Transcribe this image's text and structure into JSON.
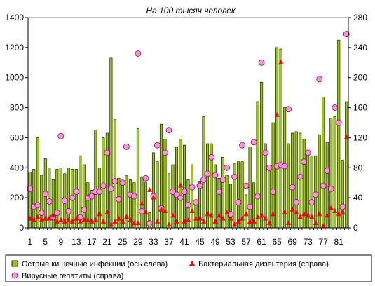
{
  "chart_data": {
    "type": "bar",
    "title": "На 100 тысяч человек",
    "xlabel": "",
    "ylabel": "",
    "ylim": [
      0,
      1400
    ],
    "y2lim": [
      0,
      280
    ],
    "y_ticks": [
      "0",
      "200",
      "400",
      "600",
      "800",
      "1000",
      "1200",
      "1400"
    ],
    "y2_ticks": [
      "0",
      "40",
      "80",
      "120",
      "160",
      "200",
      "240",
      "280"
    ],
    "x_tick_labels": [
      "1",
      "5",
      "9",
      "13",
      "17",
      "21",
      "25",
      "29",
      "33",
      "37",
      "41",
      "45",
      "49",
      "53",
      "57",
      "61",
      "65",
      "69",
      "73",
      "77",
      "81"
    ],
    "x_tick_positions": [
      1,
      5,
      9,
      13,
      17,
      21,
      25,
      29,
      33,
      37,
      41,
      45,
      49,
      53,
      57,
      61,
      65,
      69,
      73,
      77,
      81
    ],
    "legend_position": "bottom",
    "colors": {
      "bar_fill": "#99cc00",
      "bar_stroke": "#000000",
      "triangle": "#ff0000",
      "circle_fill": "#ff99cc",
      "circle_stroke": "#800080"
    },
    "series": [
      {
        "name": "Острые кишечные инфекции (ось слева)",
        "axis": "left",
        "kind": "bar",
        "values": [
          370,
          390,
          600,
          350,
          460,
          400,
          320,
          390,
          400,
          360,
          400,
          390,
          390,
          480,
          420,
          300,
          250,
          650,
          400,
          600,
          630,
          1130,
          720,
          330,
          300,
          350,
          320,
          300,
          660,
          340,
          300,
          100,
          500,
          440,
          690,
          590,
          360,
          420,
          540,
          590,
          550,
          320,
          420,
          170,
          310,
          740,
          560,
          560,
          420,
          330,
          470,
          350,
          290,
          430,
          440,
          440,
          220,
          540,
          300,
          840,
          970,
          560,
          400,
          700,
          1200,
          1190,
          800,
          560,
          630,
          640,
          630,
          590,
          490,
          480,
          480,
          620,
          870,
          570,
          730,
          740,
          1250,
          450,
          840
        ]
      },
      {
        "name": "Бактериальная дизентерия (справа)",
        "axis": "right",
        "kind": "triangle",
        "values": [
          12,
          10,
          14,
          10,
          12,
          12,
          16,
          8,
          10,
          8,
          10,
          8,
          12,
          8,
          10,
          10,
          8,
          10,
          18,
          8,
          20,
          4,
          8,
          12,
          8,
          14,
          10,
          6,
          6,
          32,
          20,
          50,
          40,
          8,
          24,
          22,
          4,
          16,
          8,
          56,
          8,
          10,
          22,
          12,
          12,
          8,
          18,
          16,
          8,
          16,
          12,
          20,
          12,
          4,
          8,
          12,
          18,
          8,
          8,
          14,
          16,
          12,
          6,
          18,
          150,
          220,
          20,
          6,
          24,
          20,
          14,
          18,
          16,
          14,
          6,
          18,
          2,
          16,
          26,
          22,
          18,
          20,
          120
        ]
      },
      {
        "name": "Вирусные гепатиты (справа)",
        "axis": "right",
        "kind": "circle",
        "values": [
          52,
          28,
          30,
          20,
          45,
          35,
          14,
          20,
          122,
          36,
          22,
          40,
          48,
          14,
          24,
          40,
          42,
          48,
          48,
          56,
          100,
          52,
          62,
          38,
          60,
          108,
          44,
          42,
          232,
          22,
          66,
          6,
          42,
          110,
          26,
          100,
          130,
          48,
          44,
          40,
          48,
          30,
          54,
          34,
          56,
          64,
          72,
          94,
          70,
          48,
          64,
          80,
          18,
          68,
          34,
          110,
          56,
          28,
          114,
          42,
          220,
          100,
          80,
          48,
          82,
          84,
          82,
          158,
          54,
          34,
          68,
          88,
          100,
          34,
          44,
          198,
          56,
          76,
          52,
          160,
          140,
          28,
          258
        ]
      }
    ]
  }
}
